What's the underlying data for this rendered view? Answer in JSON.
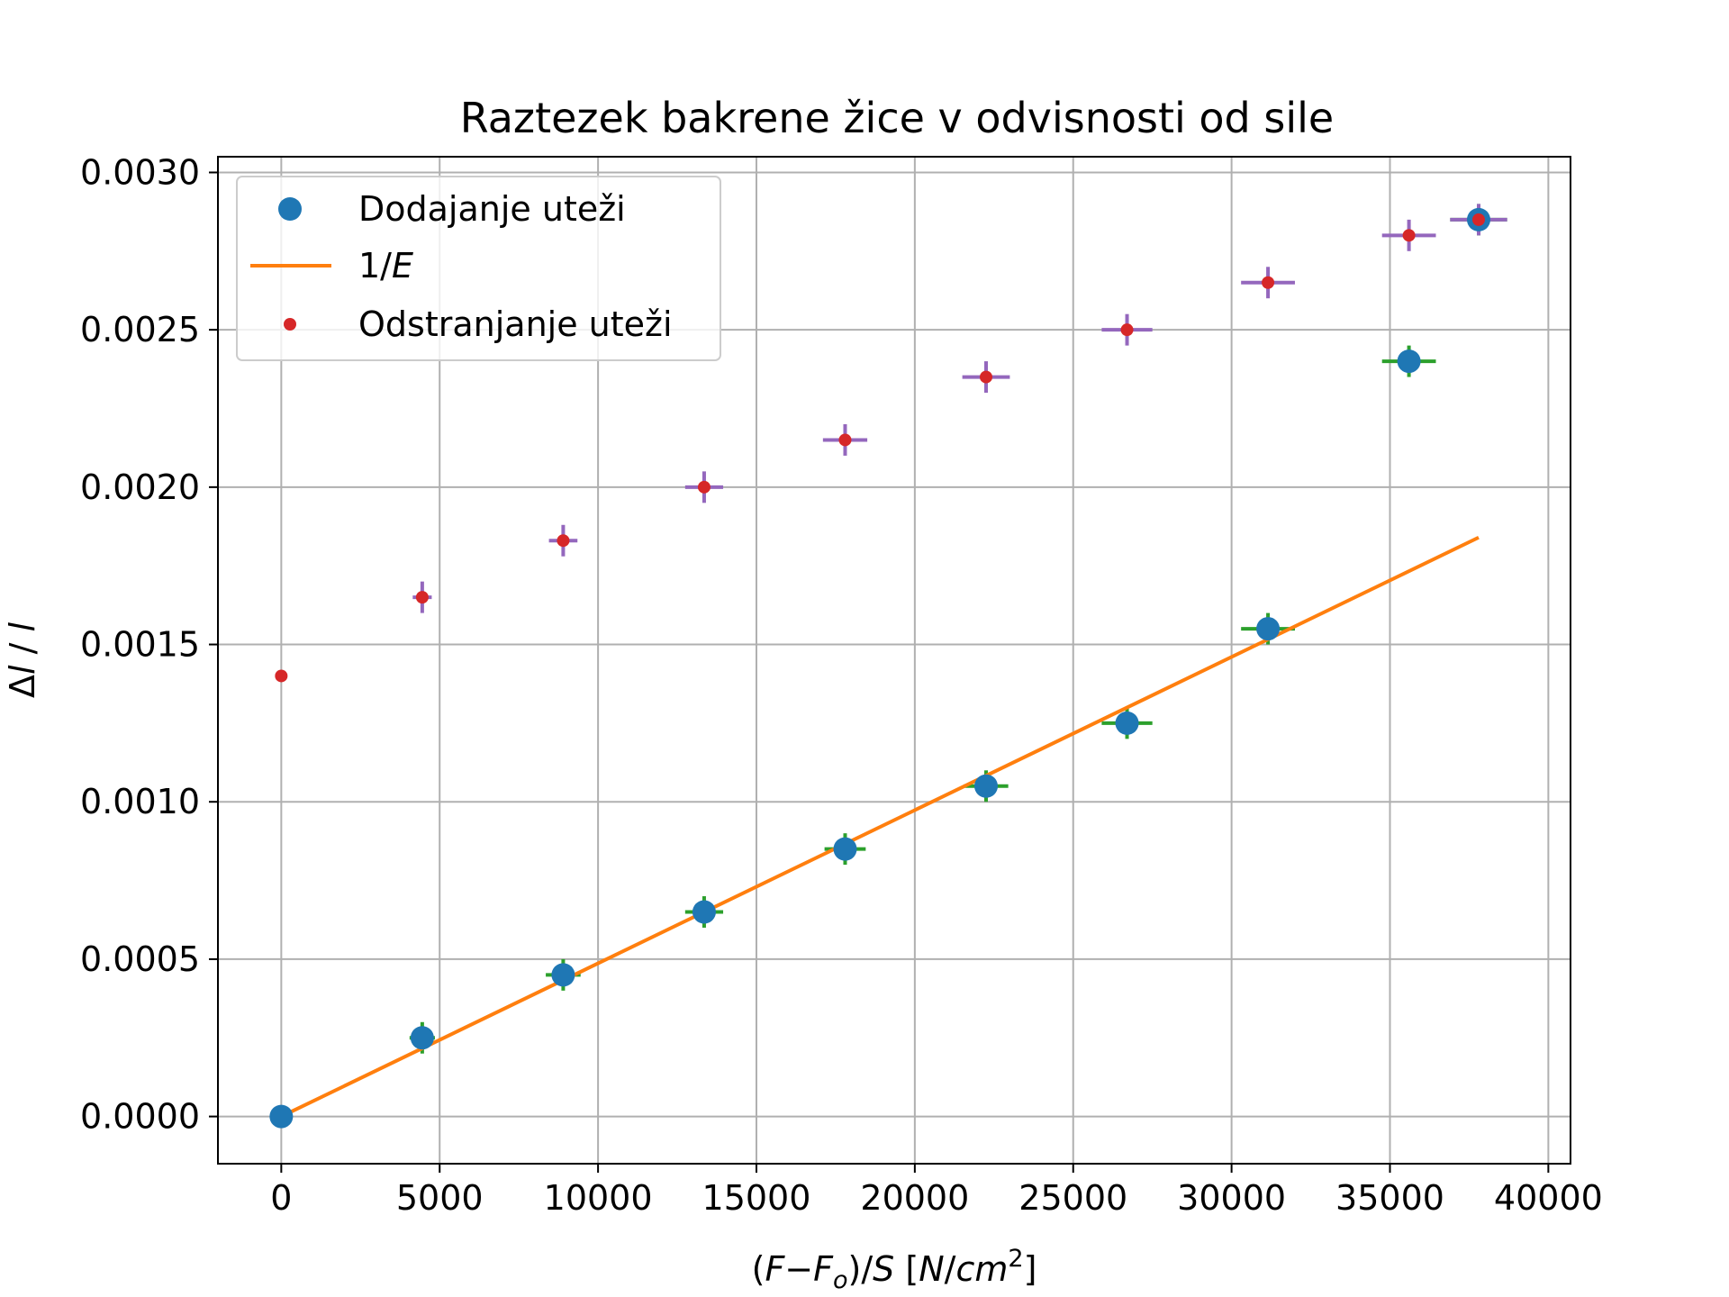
{
  "chart_data": {
    "type": "scatter",
    "title": "Raztezek bakrene žice v odvisnosti od sile",
    "xlabel": "(F−Fo)/S [N/cm2]",
    "ylabel": "Δl / l",
    "xlim": [
      -2000,
      40700
    ],
    "ylim": [
      -0.00015,
      0.00305
    ],
    "xticks": [
      0,
      5000,
      10000,
      15000,
      20000,
      25000,
      30000,
      35000,
      40000
    ],
    "xtick_labels": [
      "0",
      "5000",
      "10000",
      "15000",
      "20000",
      "25000",
      "30000",
      "35000",
      "40000"
    ],
    "yticks": [
      0.0,
      0.0005,
      0.001,
      0.0015,
      0.002,
      0.0025,
      0.003
    ],
    "ytick_labels": [
      "0.0000",
      "0.0005",
      "0.0010",
      "0.0015",
      "0.0020",
      "0.0025",
      "0.0030"
    ],
    "grid": true,
    "legend_position": "upper-left",
    "series": [
      {
        "name": "Dodajanje uteži",
        "kind": "points",
        "color": "#1f77b4",
        "errorbar_color": "#2ca02c",
        "x": [
          0,
          4450,
          8900,
          13350,
          17800,
          22250,
          26700,
          31150,
          35600,
          37800
        ],
        "y": [
          0.0,
          0.00025,
          0.00045,
          0.00065,
          0.00085,
          0.00105,
          0.00125,
          0.00155,
          0.0024,
          0.00285
        ],
        "xerr": [
          0,
          400,
          550,
          600,
          650,
          700,
          800,
          850,
          850,
          900
        ],
        "yerr": [
          0,
          5e-05,
          5e-05,
          5e-05,
          5e-05,
          5e-05,
          5e-05,
          5e-05,
          5e-05,
          5e-05
        ]
      },
      {
        "name": "1/E",
        "kind": "line",
        "color": "#ff7f0e",
        "x": [
          0,
          37800
        ],
        "y": [
          0.0,
          0.00184
        ]
      },
      {
        "name": "Odstranjanje uteži",
        "kind": "points",
        "color": "#d62728",
        "errorbar_color": "#9467bd",
        "x": [
          0,
          4450,
          8900,
          13350,
          17800,
          22250,
          26700,
          31150,
          35600,
          37800
        ],
        "y": [
          0.0014,
          0.00165,
          0.00183,
          0.002,
          0.00215,
          0.00235,
          0.0025,
          0.00265,
          0.0028,
          0.00285
        ],
        "xerr": [
          0,
          300,
          450,
          600,
          700,
          750,
          800,
          850,
          850,
          900
        ],
        "yerr": [
          0,
          5e-05,
          5e-05,
          5e-05,
          5e-05,
          5e-05,
          5e-05,
          5e-05,
          5e-05,
          5e-05
        ]
      }
    ]
  }
}
